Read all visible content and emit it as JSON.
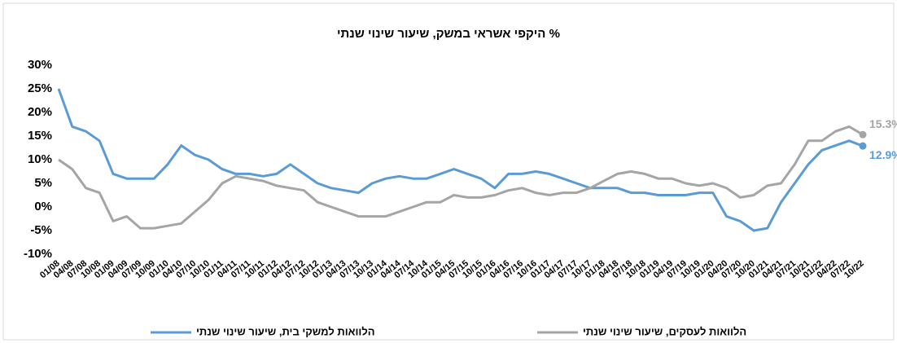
{
  "chart_data": {
    "type": "line",
    "title": "היקפי אשראי במשק, שיעור שינוי שנתי %",
    "categories": [
      "01/08",
      "04/08",
      "07/08",
      "10/08",
      "01/09",
      "04/09",
      "07/09",
      "10/09",
      "01/10",
      "04/10",
      "07/10",
      "10/10",
      "01/11",
      "04/11",
      "07/11",
      "10/11",
      "01/12",
      "04/12",
      "07/12",
      "10/12",
      "01/13",
      "04/13",
      "07/13",
      "10/13",
      "01/14",
      "04/14",
      "07/14",
      "10/14",
      "01/15",
      "04/15",
      "07/15",
      "10/15",
      "01/16",
      "04/16",
      "07/16",
      "10/16",
      "01/17",
      "04/17",
      "07/17",
      "10/17",
      "01/18",
      "04/18",
      "07/18",
      "10/18",
      "01/19",
      "04/19",
      "07/19",
      "10/19",
      "01/20",
      "04/20",
      "07/20",
      "10/20",
      "01/21",
      "04/21",
      "07/21",
      "10/21",
      "01/22",
      "04/22",
      "07/22",
      "10/22"
    ],
    "series": [
      {
        "name": "הלוואות למשקי בית, שיעור שינוי שנתי",
        "color": "#5b9bd5",
        "end_label": "12.9%",
        "values": [
          25,
          17,
          16,
          14,
          7,
          6,
          6,
          6,
          9,
          13,
          11,
          10,
          8,
          7,
          7,
          6.5,
          7,
          9,
          7,
          5,
          4,
          3.5,
          3,
          5,
          6,
          6.5,
          6,
          6,
          7,
          8,
          7,
          6,
          4,
          7,
          7,
          7.5,
          7,
          6,
          5,
          4,
          4,
          4,
          3,
          3,
          2.5,
          2.5,
          2.5,
          3,
          3,
          -2,
          -3,
          -5,
          -4.5,
          1,
          5,
          9,
          12,
          13,
          14,
          12.9
        ]
      },
      {
        "name": "הלוואות לעסקים, שיעור שינוי שנתי",
        "color": "#a5a5a5",
        "end_label": "15.3%",
        "values": [
          10,
          8,
          4,
          3,
          -3,
          -2,
          -4.5,
          -4.5,
          -4,
          -3.5,
          -1,
          1.5,
          5,
          6.5,
          6,
          5.5,
          4.5,
          4,
          3.5,
          1,
          0,
          -1,
          -2,
          -2,
          -2,
          -1,
          0,
          1,
          1,
          2.5,
          2,
          2,
          2.5,
          3.5,
          4,
          3,
          2.5,
          3,
          3,
          4,
          5.5,
          7,
          7.5,
          7,
          6,
          6,
          5,
          4.5,
          5,
          4,
          2,
          2.5,
          4.5,
          5,
          9,
          14,
          14,
          16,
          17,
          15.3
        ]
      }
    ],
    "ylim": [
      -10,
      30
    ],
    "yticks": [
      {
        "value": -10,
        "label": "-10%"
      },
      {
        "value": -5,
        "label": "-5%"
      },
      {
        "value": 0,
        "label": "0%"
      },
      {
        "value": 5,
        "label": "5%"
      },
      {
        "value": 10,
        "label": "10%"
      },
      {
        "value": 15,
        "label": "15%"
      },
      {
        "value": 20,
        "label": "20%"
      },
      {
        "value": 25,
        "label": "25%"
      },
      {
        "value": 30,
        "label": "30%"
      }
    ],
    "grid": false
  }
}
